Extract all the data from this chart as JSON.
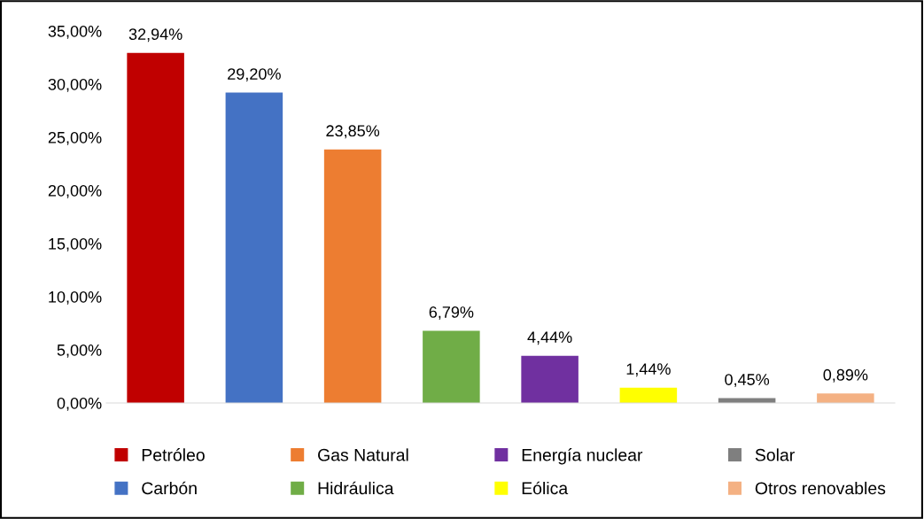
{
  "chart_data": {
    "type": "bar",
    "categories": [
      null,
      null,
      null,
      null,
      null,
      null,
      null,
      null
    ],
    "series": [
      {
        "name": "Petróleo",
        "color": "#c00000",
        "values": [
          32.94,
          null,
          null,
          null,
          null,
          null,
          null,
          null
        ],
        "value_labels": [
          "32,94%",
          null,
          null,
          null,
          null,
          null,
          null,
          null
        ]
      },
      {
        "name": "Carbón",
        "color": "#4472c4",
        "values": [
          null,
          29.2,
          null,
          null,
          null,
          null,
          null,
          null
        ],
        "value_labels": [
          null,
          "29,20%",
          null,
          null,
          null,
          null,
          null,
          null
        ]
      },
      {
        "name": "Gas Natural",
        "color": "#ed7d31",
        "values": [
          null,
          null,
          23.85,
          null,
          null,
          null,
          null,
          null
        ],
        "value_labels": [
          null,
          null,
          "23,85%",
          null,
          null,
          null,
          null,
          null
        ]
      },
      {
        "name": "Hidráulica",
        "color": "#70ad47",
        "values": [
          null,
          null,
          null,
          6.79,
          null,
          null,
          null,
          null
        ],
        "value_labels": [
          null,
          null,
          null,
          "6,79%",
          null,
          null,
          null,
          null
        ]
      },
      {
        "name": "Energía nuclear",
        "color": "#7030a0",
        "values": [
          null,
          null,
          null,
          null,
          4.44,
          null,
          null,
          null
        ],
        "value_labels": [
          null,
          null,
          null,
          null,
          "4,44%",
          null,
          null,
          null
        ]
      },
      {
        "name": "Eólica",
        "color": "#ffff00",
        "values": [
          null,
          null,
          null,
          null,
          null,
          1.44,
          null,
          null
        ],
        "value_labels": [
          null,
          null,
          null,
          null,
          null,
          "1,44%",
          null,
          null
        ]
      },
      {
        "name": "Solar",
        "color": "#7f7f7f",
        "values": [
          null,
          null,
          null,
          null,
          null,
          null,
          0.45,
          null
        ],
        "value_labels": [
          null,
          null,
          null,
          null,
          null,
          null,
          "0,45%",
          null
        ]
      },
      {
        "name": "Otros renovables",
        "color": "#f4b183",
        "values": [
          null,
          null,
          null,
          null,
          null,
          null,
          null,
          0.89
        ],
        "value_labels": [
          null,
          null,
          null,
          null,
          null,
          null,
          null,
          "0,89%"
        ]
      }
    ],
    "ylim": [
      0,
      35
    ],
    "yticks": [
      {
        "value": 0,
        "label": "0,00%"
      },
      {
        "value": 5,
        "label": "5,00%"
      },
      {
        "value": 10,
        "label": "10,00%"
      },
      {
        "value": 15,
        "label": "15,00%"
      },
      {
        "value": 20,
        "label": "20,00%"
      },
      {
        "value": 25,
        "label": "25,00%"
      },
      {
        "value": 30,
        "label": "30,00%"
      },
      {
        "value": 35,
        "label": "35,00%"
      }
    ],
    "grid": false,
    "legend": "bottom",
    "tick_labels": "y"
  }
}
